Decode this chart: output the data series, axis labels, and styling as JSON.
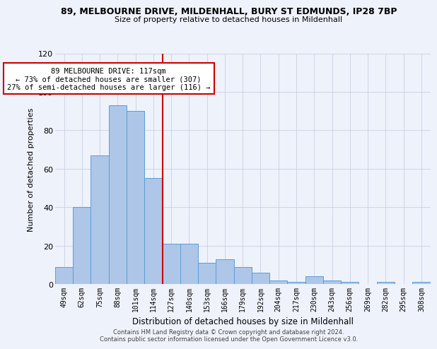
{
  "title_line1": "89, MELBOURNE DRIVE, MILDENHALL, BURY ST EDMUNDS, IP28 7BP",
  "title_line2": "Size of property relative to detached houses in Mildenhall",
  "xlabel": "Distribution of detached houses by size in Mildenhall",
  "ylabel": "Number of detached properties",
  "categories": [
    "49sqm",
    "62sqm",
    "75sqm",
    "88sqm",
    "101sqm",
    "114sqm",
    "127sqm",
    "140sqm",
    "153sqm",
    "166sqm",
    "179sqm",
    "192sqm",
    "204sqm",
    "217sqm",
    "230sqm",
    "243sqm",
    "256sqm",
    "269sqm",
    "282sqm",
    "295sqm",
    "308sqm"
  ],
  "values": [
    9,
    40,
    67,
    93,
    90,
    55,
    21,
    21,
    11,
    13,
    9,
    6,
    2,
    1,
    4,
    2,
    1,
    0,
    1,
    0,
    1
  ],
  "bar_color": "#aec6e8",
  "bar_edge_color": "#5a9fd4",
  "reference_line_color": "#cc0000",
  "ylim": [
    0,
    120
  ],
  "yticks": [
    0,
    20,
    40,
    60,
    80,
    100,
    120
  ],
  "annotation_title": "89 MELBOURNE DRIVE: 117sqm",
  "annotation_line2": "← 73% of detached houses are smaller (307)",
  "annotation_line3": "27% of semi-detached houses are larger (116) →",
  "annotation_box_color": "#ffffff",
  "annotation_box_edge_color": "#cc0000",
  "footer_line1": "Contains HM Land Registry data © Crown copyright and database right 2024.",
  "footer_line2": "Contains public sector information licensed under the Open Government Licence v3.0.",
  "background_color": "#eef2fb"
}
